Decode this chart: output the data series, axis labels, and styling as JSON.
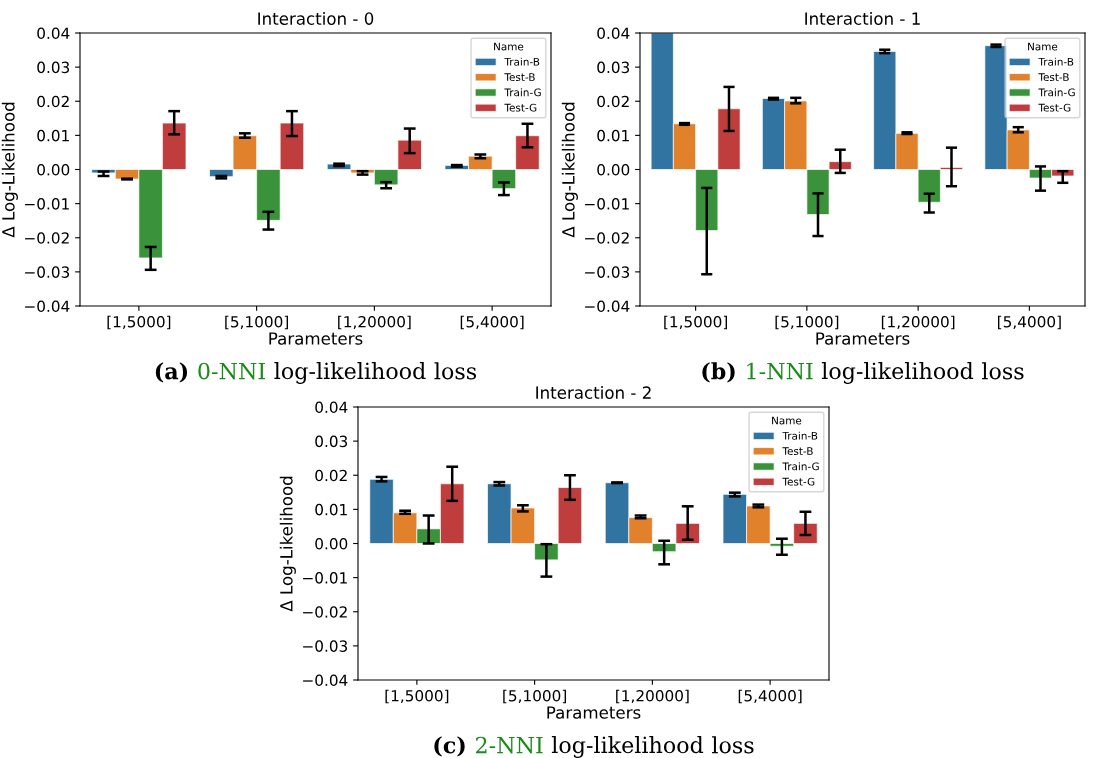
{
  "chart_data": [
    {
      "type": "bar",
      "title": "Interaction - 0",
      "xlabel": "Parameters",
      "ylabel": "Δ Log-Likelihood",
      "legend_title": "Name",
      "legend": "top right",
      "grid": false,
      "categories": [
        "[1,5000]",
        "[5,1000]",
        "[1,20000]",
        "[5,4000]"
      ],
      "ylim": [
        -0.04,
        0.04
      ],
      "yticks": [
        {
          "value": -0.04,
          "label": "−0.04"
        },
        {
          "value": -0.03,
          "label": "−0.03"
        },
        {
          "value": -0.02,
          "label": "−0.02"
        },
        {
          "value": -0.01,
          "label": "−0.01"
        },
        {
          "value": 0,
          "label": "0.00"
        },
        {
          "value": 0.01,
          "label": "0.01"
        },
        {
          "value": 0.02,
          "label": "0.02"
        },
        {
          "value": 0.03,
          "label": "0.03"
        },
        {
          "value": 0.04,
          "label": "0.04"
        }
      ],
      "series": [
        {
          "name": "Train-B",
          "color": "#3274a1",
          "values": [
            -0.001,
            -0.0021,
            0.0016,
            0.0012
          ],
          "errors": [
            [
              -0.0019,
              -0.0006
            ],
            [
              -0.0026,
              -0.0019
            ],
            [
              0.001,
              0.0017
            ],
            [
              0.0008,
              0.0013
            ]
          ]
        },
        {
          "name": "Test-B",
          "color": "#e1812c",
          "values": [
            -0.0028,
            0.0099,
            -0.001,
            0.0039
          ],
          "errors": [
            [
              -0.0029,
              -0.0027
            ],
            [
              0.0093,
              0.0106
            ],
            [
              -0.0015,
              -0.0005
            ],
            [
              0.0033,
              0.0044
            ]
          ]
        },
        {
          "name": "Train-G",
          "color": "#3a923a",
          "values": [
            -0.0259,
            -0.0149,
            -0.0045,
            -0.0056
          ],
          "errors": [
            [
              -0.0294,
              -0.0227
            ],
            [
              -0.0176,
              -0.0124
            ],
            [
              -0.0055,
              -0.0037
            ],
            [
              -0.0075,
              -0.0038
            ]
          ]
        },
        {
          "name": "Test-G",
          "color": "#c03d3e",
          "values": [
            0.0136,
            0.0136,
            0.0086,
            0.0099
          ],
          "errors": [
            [
              0.0103,
              0.0171
            ],
            [
              0.0098,
              0.0171
            ],
            [
              0.0048,
              0.012
            ],
            [
              0.0065,
              0.0134
            ]
          ]
        }
      ],
      "annotations": [
        "(a) 0-NNI log-likelihood loss"
      ]
    },
    {
      "type": "bar",
      "title": "Interaction - 1",
      "xlabel": "Parameters",
      "ylabel": "Δ Log-Likelihood",
      "legend_title": "Name",
      "legend": "top right",
      "grid": false,
      "categories": [
        "[1,5000]",
        "[5,1000]",
        "[1,20000]",
        "[5,4000]"
      ],
      "ylim": [
        -0.04,
        0.04
      ],
      "yticks": [
        {
          "value": -0.04,
          "label": "−0.04"
        },
        {
          "value": -0.03,
          "label": "−0.03"
        },
        {
          "value": -0.02,
          "label": "−0.02"
        },
        {
          "value": -0.01,
          "label": "−0.01"
        },
        {
          "value": 0,
          "label": "0.00"
        },
        {
          "value": 0.01,
          "label": "0.01"
        },
        {
          "value": 0.02,
          "label": "0.02"
        },
        {
          "value": 0.03,
          "label": "0.03"
        },
        {
          "value": 0.04,
          "label": "0.04"
        }
      ],
      "series": [
        {
          "name": "Train-B",
          "color": "#3274a1",
          "values": [
            0.04,
            0.0208,
            0.0346,
            0.0363
          ],
          "errors": [
            null,
            [
              0.0205,
              0.021
            ],
            [
              0.0341,
              0.0351
            ],
            [
              0.0359,
              0.0366
            ]
          ]
        },
        {
          "name": "Test-B",
          "color": "#e1812c",
          "values": [
            0.0134,
            0.0201,
            0.0106,
            0.0116
          ],
          "errors": [
            [
              0.0131,
              0.0136
            ],
            [
              0.0194,
              0.021
            ],
            [
              0.0104,
              0.0109
            ],
            [
              0.0109,
              0.0124
            ]
          ]
        },
        {
          "name": "Train-G",
          "color": "#3a923a",
          "values": [
            -0.0179,
            -0.0132,
            -0.0096,
            -0.0025
          ],
          "errors": [
            [
              -0.0307,
              -0.0054
            ],
            [
              -0.0195,
              -0.007
            ],
            [
              -0.0126,
              -0.0071
            ],
            [
              -0.0062,
              0.0009
            ]
          ]
        },
        {
          "name": "Test-G",
          "color": "#c03d3e",
          "values": [
            0.0178,
            0.0023,
            0.0006,
            -0.0019
          ],
          "errors": [
            [
              0.0113,
              0.0242
            ],
            [
              -0.001,
              0.0058
            ],
            [
              -0.0049,
              0.0064
            ],
            [
              -0.0039,
              -0.0005
            ]
          ]
        }
      ],
      "annotations": [
        "(b) 1-NNI log-likelihood loss"
      ]
    },
    {
      "type": "bar",
      "title": "Interaction - 2",
      "xlabel": "Parameters",
      "ylabel": "Δ Log-Likelihood",
      "legend_title": "Name",
      "legend": "top right",
      "grid": false,
      "categories": [
        "[1,5000]",
        "[5,1000]",
        "[1,20000]",
        "[5,4000]"
      ],
      "ylim": [
        -0.04,
        0.04
      ],
      "yticks": [
        {
          "value": -0.04,
          "label": "−0.04"
        },
        {
          "value": -0.03,
          "label": "−0.03"
        },
        {
          "value": -0.02,
          "label": "−0.02"
        },
        {
          "value": -0.01,
          "label": "−0.01"
        },
        {
          "value": 0,
          "label": "0.00"
        },
        {
          "value": 0.01,
          "label": "0.01"
        },
        {
          "value": 0.02,
          "label": "0.02"
        },
        {
          "value": 0.03,
          "label": "0.03"
        },
        {
          "value": 0.04,
          "label": "0.04"
        }
      ],
      "series": [
        {
          "name": "Train-B",
          "color": "#3274a1",
          "values": [
            0.0188,
            0.0175,
            0.0178,
            0.0144
          ],
          "errors": [
            [
              0.0182,
              0.0195
            ],
            [
              0.017,
              0.018
            ],
            [
              0.0177,
              0.0179
            ],
            [
              0.0138,
              0.0149
            ]
          ]
        },
        {
          "name": "Test-B",
          "color": "#e1812c",
          "values": [
            0.009,
            0.0104,
            0.0076,
            0.011
          ],
          "errors": [
            [
              0.0087,
              0.0096
            ],
            [
              0.0094,
              0.0112
            ],
            [
              0.0074,
              0.0082
            ],
            [
              0.0106,
              0.0114
            ]
          ]
        },
        {
          "name": "Train-G",
          "color": "#3a923a",
          "values": [
            0.0043,
            -0.0048,
            -0.0024,
            -0.0008
          ],
          "errors": [
            [
              0.0,
              0.0082
            ],
            [
              -0.0097,
              -0.0002
            ],
            [
              -0.0061,
              0.0008
            ],
            [
              -0.0033,
              0.0014
            ]
          ]
        },
        {
          "name": "Test-G",
          "color": "#c03d3e",
          "values": [
            0.0175,
            0.0164,
            0.0059,
            0.0059
          ],
          "errors": [
            [
              0.0125,
              0.0225
            ],
            [
              0.0128,
              0.02
            ],
            [
              0.0011,
              0.0109
            ],
            [
              0.0025,
              0.0093
            ]
          ]
        }
      ],
      "annotations": [
        "(c) 2-NNI log-likelihood loss"
      ]
    }
  ]
}
